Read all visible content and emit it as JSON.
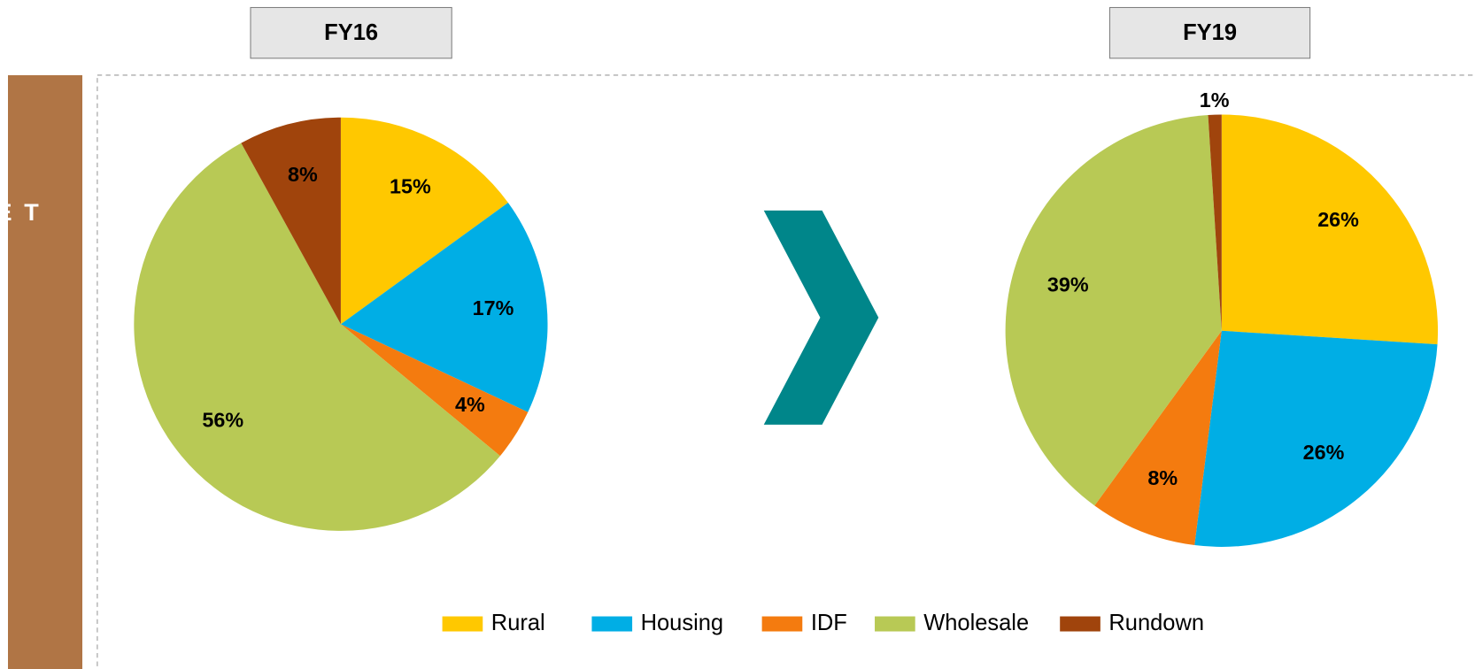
{
  "side_label": "ASSET MIX",
  "chart_data": [
    {
      "type": "pie",
      "title": "FY16",
      "categories": [
        "Rural",
        "Housing",
        "IDF",
        "Wholesale",
        "Rundown"
      ],
      "values": [
        15,
        17,
        4,
        56,
        8
      ],
      "value_labels": [
        "15%",
        "17%",
        "4%",
        "56%",
        "8%"
      ],
      "colors": [
        "#FFC800",
        "#00AEE5",
        "#F47B0F",
        "#B8C955",
        "#A0440C"
      ]
    },
    {
      "type": "pie",
      "title": "FY19",
      "categories": [
        "Rural",
        "Housing",
        "IDF",
        "Wholesale",
        "Rundown"
      ],
      "values": [
        26,
        26,
        8,
        39,
        1
      ],
      "value_labels": [
        "26%",
        "26%",
        "8%",
        "39%",
        "1%"
      ],
      "colors": [
        "#FFC800",
        "#00AEE5",
        "#F47B0F",
        "#B8C955",
        "#A0440C"
      ]
    }
  ]
}
